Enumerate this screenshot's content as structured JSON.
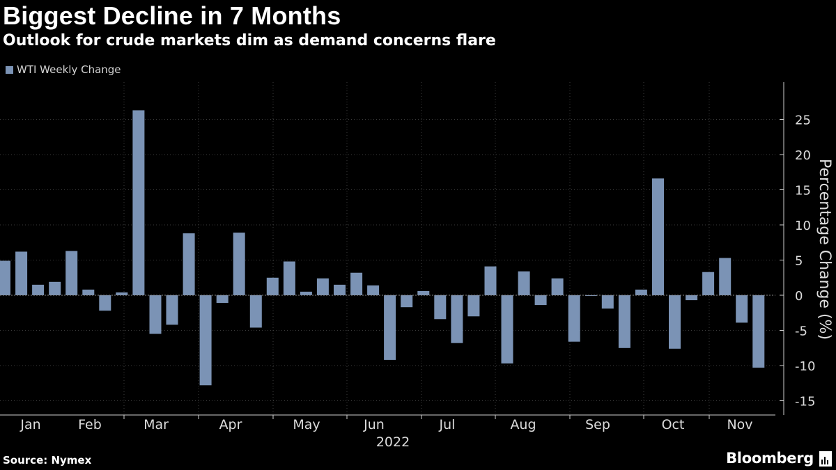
{
  "header": {
    "title": "Biggest Decline in 7 Months",
    "subtitle": "Outlook for crude markets dim as demand concerns flare"
  },
  "legend": {
    "label": "WTI Weekly Change",
    "color": "#7b93b5"
  },
  "footer": {
    "source": "Source: Nymex",
    "brand": "Bloomberg"
  },
  "chart_data": {
    "type": "bar",
    "title": "Biggest Decline in 7 Months",
    "subtitle": "Outlook for crude markets dim as demand concerns flare",
    "series": [
      {
        "name": "WTI Weekly Change",
        "color": "#7b93b5",
        "values": [
          4.9,
          6.2,
          1.5,
          1.9,
          6.3,
          0.8,
          -2.2,
          0.4,
          26.3,
          -5.5,
          -4.2,
          8.8,
          -12.8,
          -1.1,
          8.9,
          -4.6,
          2.5,
          4.8,
          0.5,
          2.4,
          1.5,
          3.2,
          1.4,
          -9.2,
          -1.7,
          0.6,
          -3.4,
          -6.8,
          -3.0,
          4.1,
          -9.7,
          3.4,
          -1.4,
          2.4,
          -6.6,
          -0.1,
          -1.9,
          -7.5,
          0.8,
          16.6,
          -7.6,
          -0.7,
          3.3,
          5.3,
          -3.9,
          -10.3
        ]
      }
    ],
    "x_labels": [
      "Jan",
      "Feb",
      "Mar",
      "Apr",
      "May",
      "Jun",
      "Jul",
      "Aug",
      "Sep",
      "Oct",
      "Nov"
    ],
    "x_year": "2022",
    "ylabel": "Percentage Change (%)",
    "y_ticks": [
      25,
      20,
      15,
      10,
      5,
      0,
      -5,
      -10,
      -15
    ],
    "ylim": [
      -17,
      29
    ],
    "grid": true,
    "legend_position": "top-left"
  }
}
